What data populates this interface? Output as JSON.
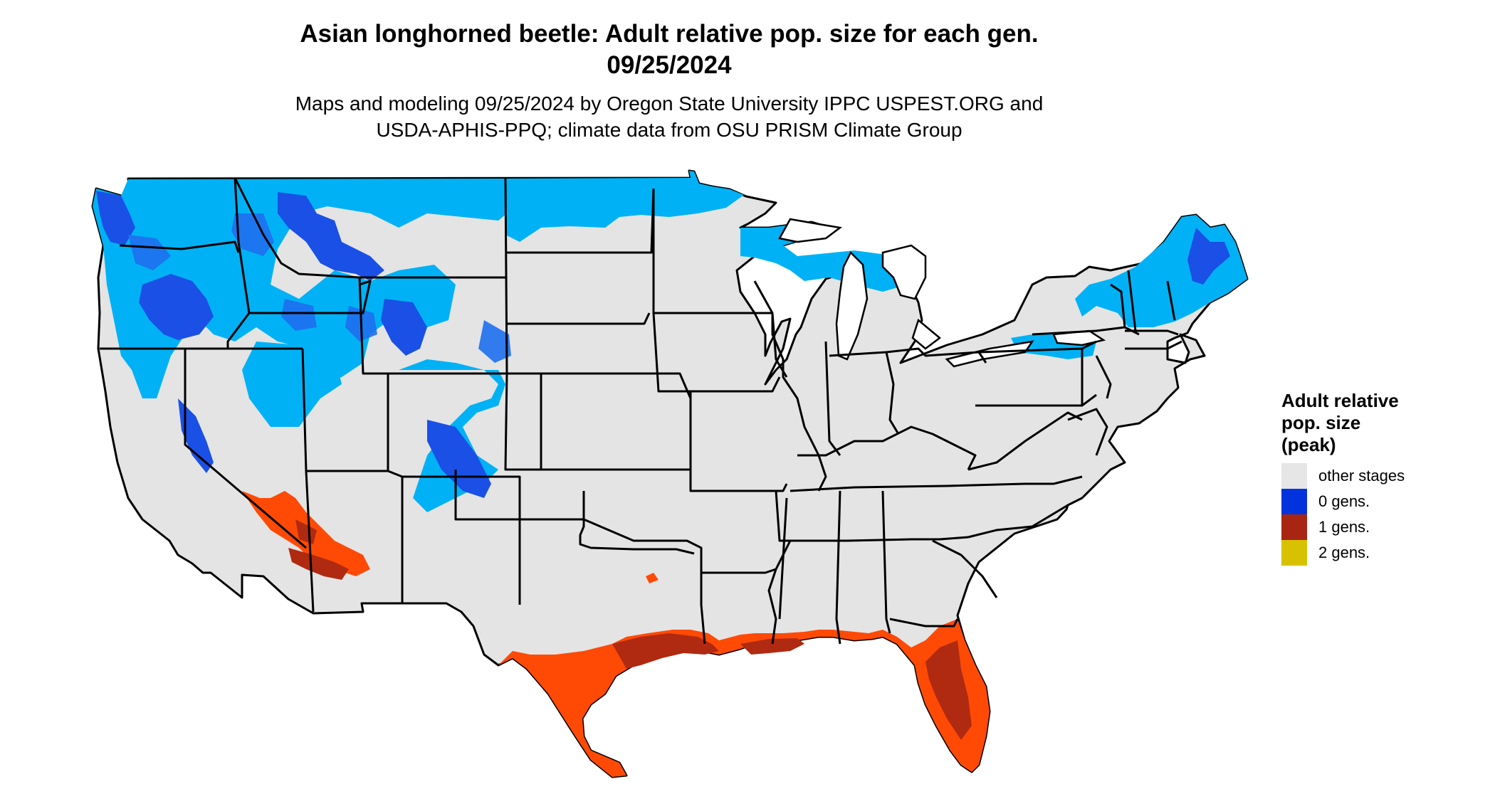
{
  "title_line1": "Asian longhorned beetle: Adult relative pop. size for each gen.",
  "title_line2": "09/25/2024",
  "subtitle_line1": "Maps and modeling 09/25/2024 by Oregon State University IPPC USPEST.ORG and",
  "subtitle_line2": "USDA-APHIS-PPQ; climate data from OSU PRISM Climate Group",
  "legend": {
    "title_lines": [
      "Adult relative",
      "pop. size",
      "(peak)"
    ],
    "items": [
      {
        "label": "other stages",
        "color": "#e6e6e6"
      },
      {
        "label": "0 gens.",
        "color": "#0033dd"
      },
      {
        "label": "1 gens.",
        "color": "#a72511"
      },
      {
        "label": "2 gens.",
        "color": "#d8c200"
      }
    ]
  },
  "map": {
    "region": "Contiguous United States",
    "base_color": "#e4e4e4",
    "border_color": "#000000",
    "zone_colors": {
      "light_blue": "#00b2f5",
      "mid_blue": "#1e6ff0",
      "dark_blue": "#1034d8",
      "orange": "#ff4a06",
      "dark_red": "#b02a12"
    }
  }
}
